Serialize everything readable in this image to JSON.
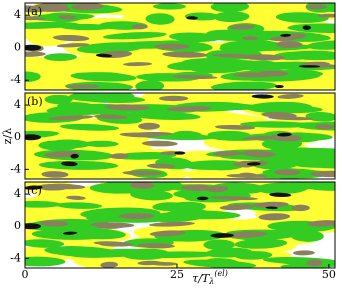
{
  "chart_data": [
    {
      "type": "contour",
      "label": "(a)",
      "xlim": [
        0,
        51
      ],
      "ylim": [
        -5.2,
        5.5
      ],
      "yticks": [
        -4,
        0,
        4
      ],
      "colors": [
        "#ffff33",
        "#33cc22",
        "#8a8060",
        "#111111"
      ]
    },
    {
      "type": "contour",
      "label": "(b)",
      "xlim": [
        0,
        51
      ],
      "ylim": [
        -5.2,
        5.5
      ],
      "yticks": [
        -4,
        0,
        4
      ],
      "colors": [
        "#ffff33",
        "#33cc22",
        "#8a8060",
        "#111111"
      ]
    },
    {
      "type": "contour",
      "label": "(c)",
      "xlim": [
        0,
        51
      ],
      "ylim": [
        -5.2,
        5.5
      ],
      "yticks": [
        -4,
        0,
        4
      ],
      "xticks": [
        0,
        25,
        50
      ],
      "colors": [
        "#ffff33",
        "#33cc22",
        "#8a8060",
        "#111111"
      ]
    }
  ],
  "ylabel": "z/λ",
  "xlabel": {
    "main": "τ/T",
    "sub": "λ",
    "sup": "(el)"
  }
}
